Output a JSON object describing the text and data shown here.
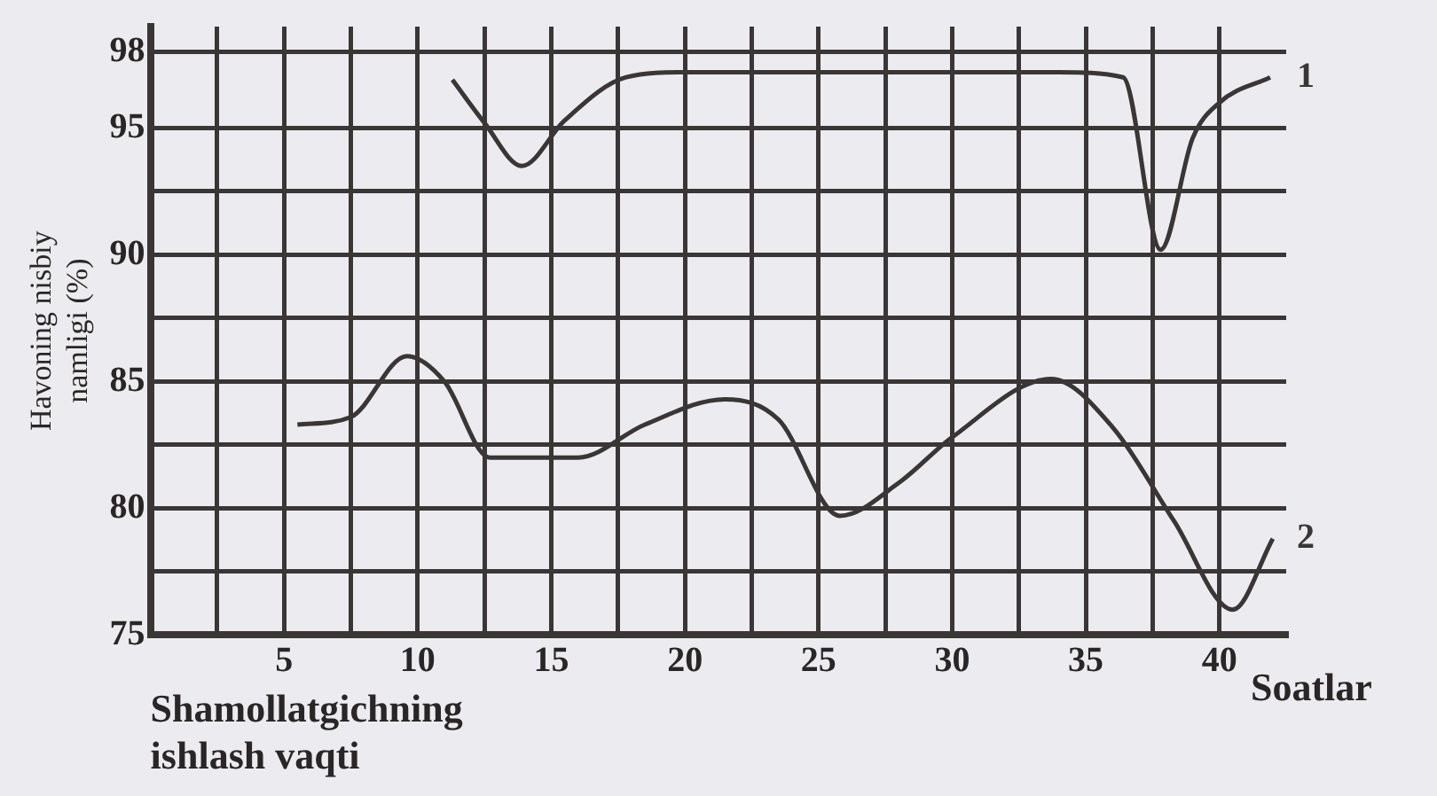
{
  "chart_data": {
    "type": "line",
    "xlabel": "Shamollatgichning ishlash vaqti",
    "ylabel": "Havoning nisbiy namligi (%)",
    "annotations": [
      "Soatlar"
    ],
    "xlim": [
      0,
      42.5
    ],
    "ylim": [
      75,
      99
    ],
    "xticks": [
      {
        "value": 2.5,
        "label": null
      },
      5,
      {
        "value": 7.5,
        "label": null
      },
      10,
      {
        "value": 12.5,
        "label": null
      },
      15,
      {
        "value": 17.5,
        "label": null
      },
      20,
      {
        "value": 22.5,
        "label": null
      },
      25,
      {
        "value": 27.5,
        "label": null
      },
      30,
      {
        "value": 32.5,
        "label": null
      },
      35,
      {
        "value": 37.5,
        "label": null
      },
      40
    ],
    "yticks": [
      75,
      {
        "value": 77.5,
        "label": null
      },
      80,
      {
        "value": 82.5,
        "label": null
      },
      85,
      {
        "value": 87.5,
        "label": null
      },
      90,
      {
        "value": 92.5,
        "label": null
      },
      95,
      98
    ],
    "grid": true,
    "legend": false,
    "marker": "none",
    "line_style": "solid",
    "series": [
      {
        "name": "1",
        "color": "#3b3636",
        "x": [
          11.3,
          12.5,
          13.9,
          15.5,
          17.8,
          20,
          25,
          30,
          34,
          36.4,
          37.8,
          39,
          40,
          41.9
        ],
        "values": [
          96.9,
          95.2,
          93.5,
          95.3,
          97,
          97.2,
          97.2,
          97.2,
          97.2,
          97,
          90.2,
          94.6,
          96,
          97
        ]
      },
      {
        "name": "2",
        "color": "#3b3636",
        "x": [
          5.5,
          7.5,
          9.6,
          11,
          12.7,
          16,
          18.5,
          21.5,
          23.5,
          25.8,
          28,
          30,
          33.7,
          36,
          38.3,
          40.5,
          42
        ],
        "values": [
          83.3,
          83.6,
          86,
          85,
          82,
          82,
          83.3,
          84.3,
          83.5,
          79.7,
          81,
          82.8,
          85.1,
          83.2,
          79.5,
          76,
          78.8
        ]
      }
    ]
  }
}
